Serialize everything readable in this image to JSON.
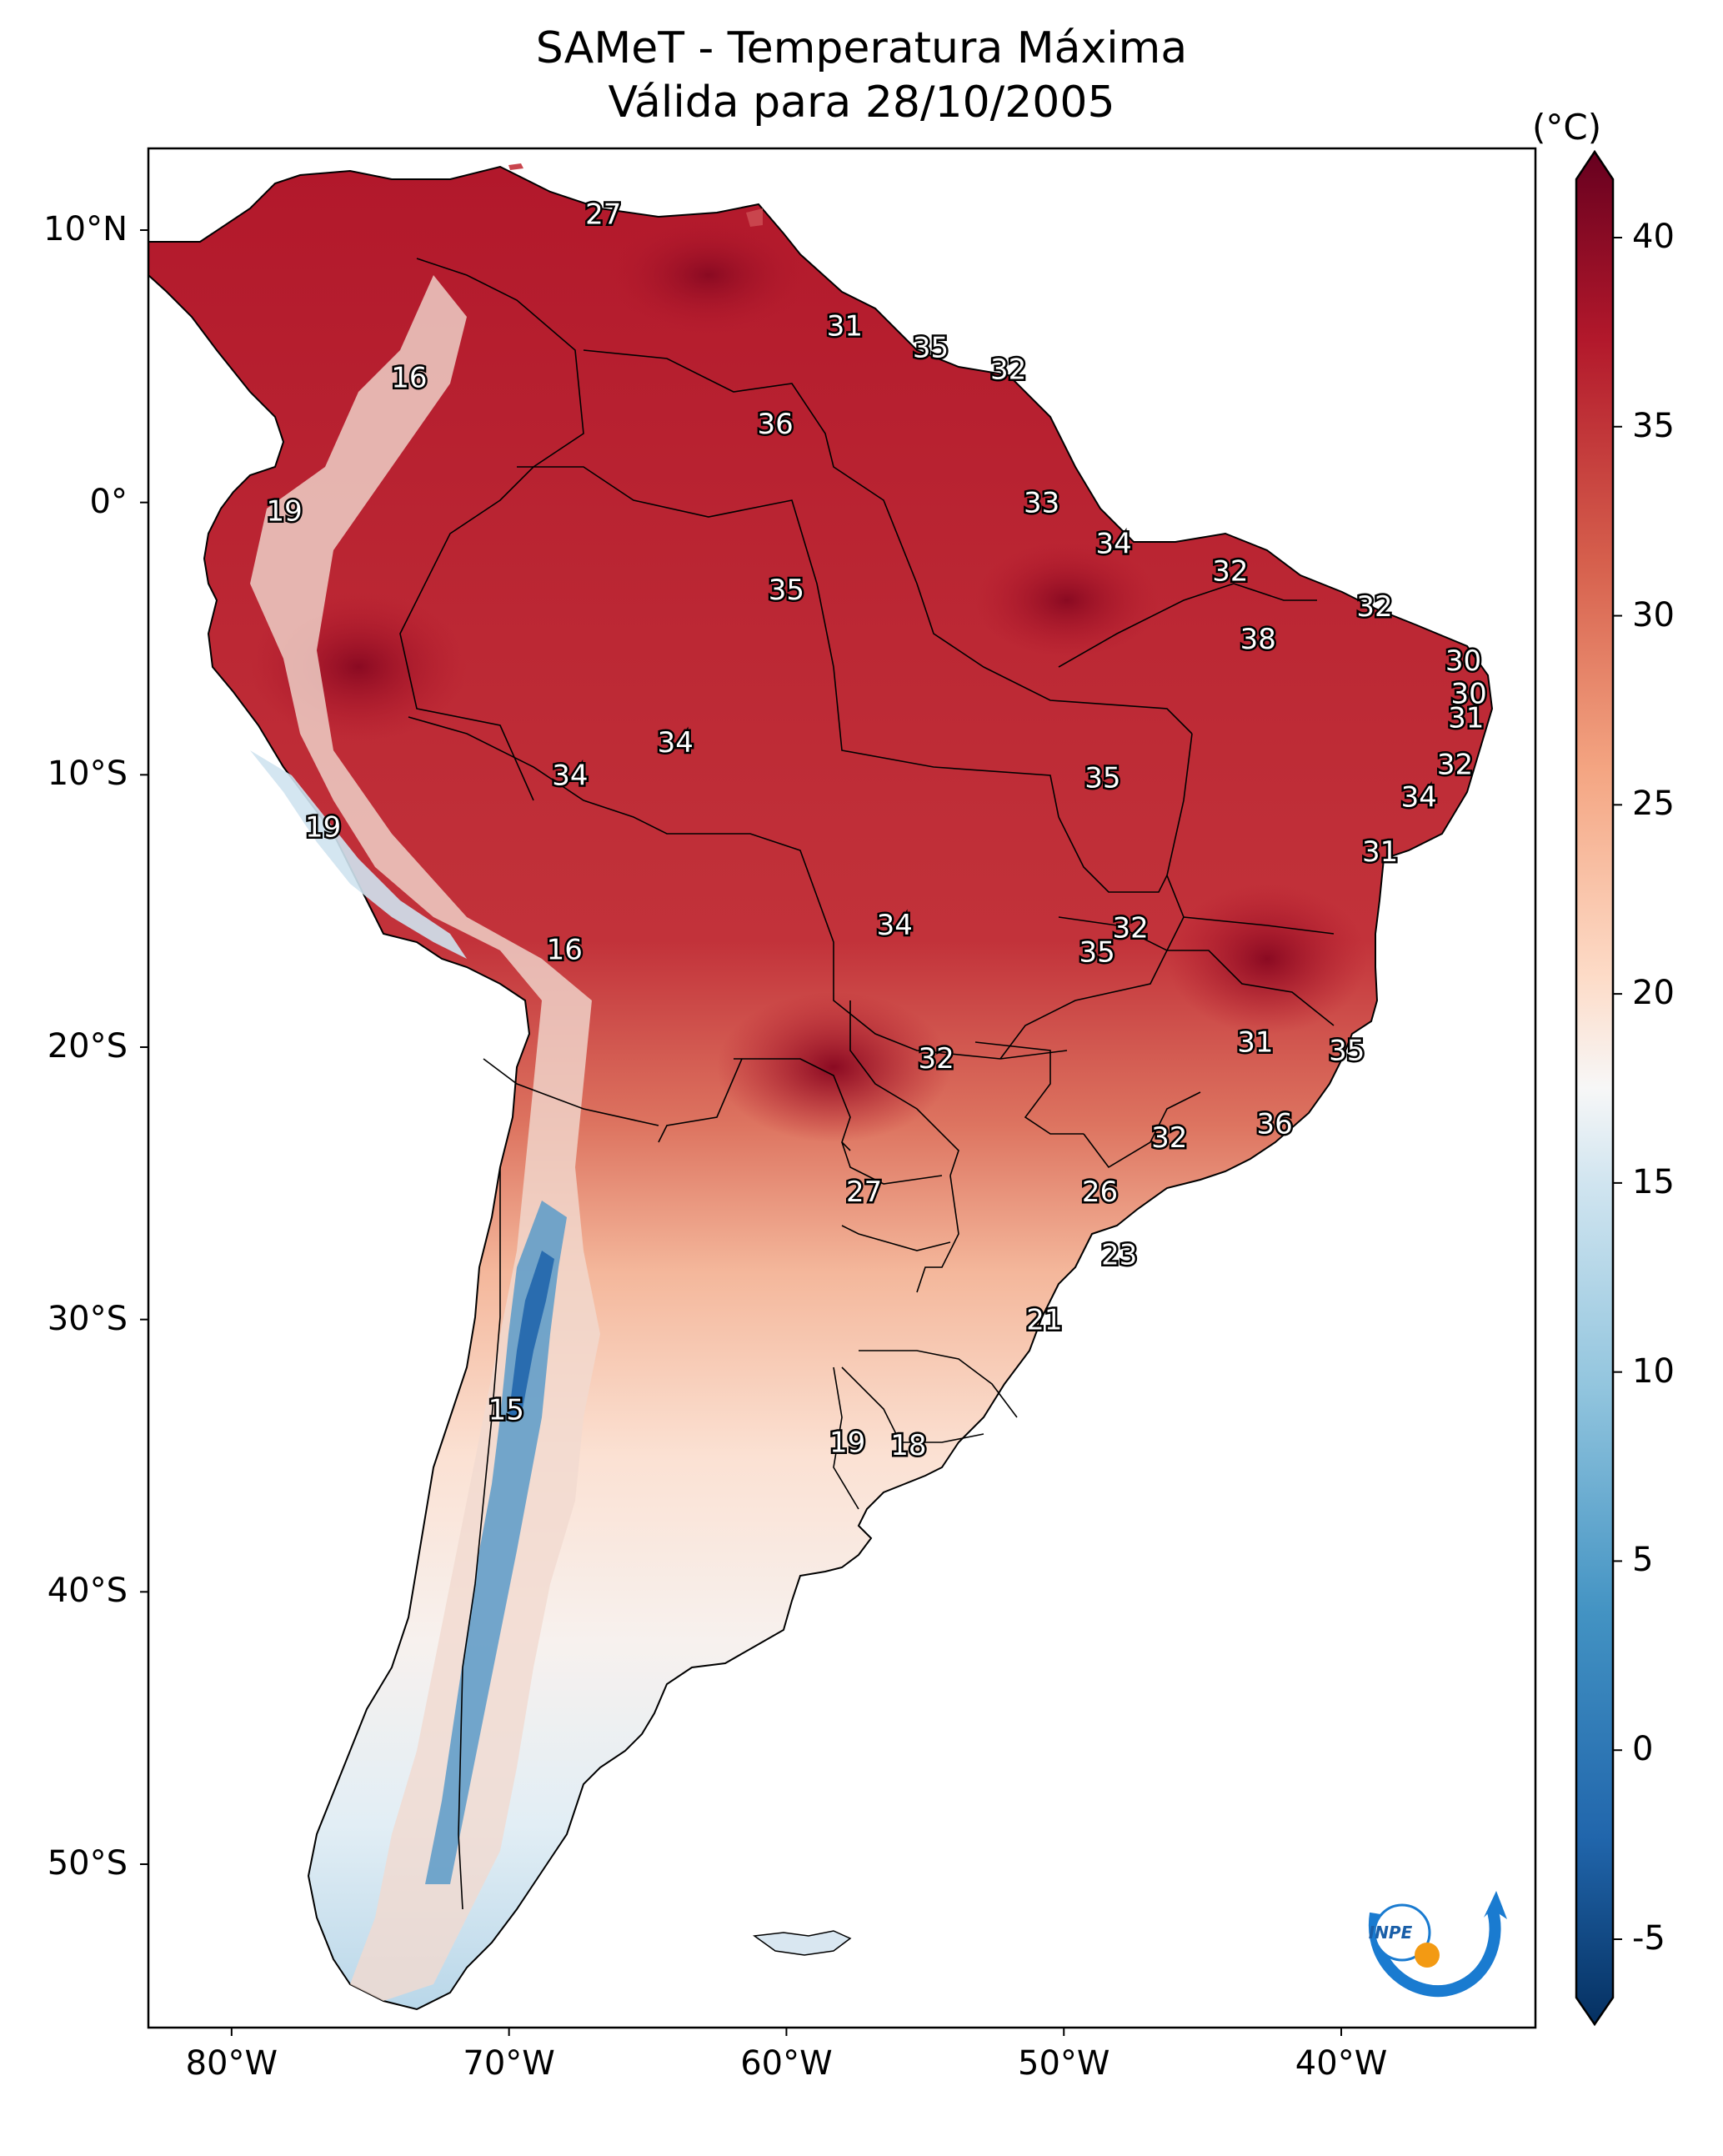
{
  "title": {
    "line1": "SAMeT - Temperatura Máxima",
    "line2": "Válida para 28/10/2005"
  },
  "colorbar": {
    "unit": "(°C)",
    "ticks": [
      40,
      35,
      30,
      25,
      20,
      15,
      10,
      5,
      0,
      -5
    ],
    "tick_labels": [
      "40",
      "35",
      "30",
      "25",
      "20",
      "15",
      "10",
      "5",
      "0",
      "-5"
    ],
    "range": [
      -5,
      40
    ],
    "colormap": "RdBu_r"
  },
  "axes": {
    "lat_labels": [
      "10°N",
      "0°",
      "10°S",
      "20°S",
      "30°S",
      "40°S",
      "50°S"
    ],
    "lat_values": [
      10,
      0,
      -10,
      -20,
      -30,
      -40,
      -50
    ],
    "lon_labels": [
      "80°W",
      "70°W",
      "60°W",
      "50°W",
      "40°W"
    ],
    "lon_values": [
      -80,
      -70,
      -60,
      -50,
      -40
    ],
    "lon_range": [
      -83,
      -33
    ],
    "lat_range": [
      -56,
      13
    ]
  },
  "contour_labels": [
    {
      "text": "27",
      "lon": -66.6,
      "lat": 10.6
    },
    {
      "text": "16",
      "lon": -73.6,
      "lat": 4.6
    },
    {
      "text": "31",
      "lon": -57.9,
      "lat": 6.5
    },
    {
      "text": "35",
      "lon": -54.8,
      "lat": 5.7
    },
    {
      "text": "32",
      "lon": -52.0,
      "lat": 4.9
    },
    {
      "text": "36",
      "lon": -60.4,
      "lat": 2.9
    },
    {
      "text": "19",
      "lon": -78.1,
      "lat": -0.3
    },
    {
      "text": "33",
      "lon": -50.8,
      "lat": 0.0
    },
    {
      "text": "34",
      "lon": -48.2,
      "lat": -1.5
    },
    {
      "text": "32",
      "lon": -44.0,
      "lat": -2.5
    },
    {
      "text": "35",
      "lon": -60.0,
      "lat": -3.2
    },
    {
      "text": "32",
      "lon": -38.8,
      "lat": -3.8
    },
    {
      "text": "38",
      "lon": -43.0,
      "lat": -5.0
    },
    {
      "text": "30",
      "lon": -35.6,
      "lat": -5.8
    },
    {
      "text": "30",
      "lon": -35.4,
      "lat": -7.0
    },
    {
      "text": "31",
      "lon": -35.5,
      "lat": -7.9
    },
    {
      "text": "34",
      "lon": -64.0,
      "lat": -8.8
    },
    {
      "text": "34",
      "lon": -67.8,
      "lat": -10.0
    },
    {
      "text": "35",
      "lon": -48.6,
      "lat": -10.1
    },
    {
      "text": "32",
      "lon": -35.9,
      "lat": -9.6
    },
    {
      "text": "34",
      "lon": -37.2,
      "lat": -10.8
    },
    {
      "text": "19",
      "lon": -76.7,
      "lat": -11.9
    },
    {
      "text": "31",
      "lon": -38.6,
      "lat": -12.8
    },
    {
      "text": "34",
      "lon": -56.1,
      "lat": -15.5
    },
    {
      "text": "32",
      "lon": -47.6,
      "lat": -15.6
    },
    {
      "text": "35",
      "lon": -48.8,
      "lat": -16.5
    },
    {
      "text": "16",
      "lon": -68.0,
      "lat": -16.4
    },
    {
      "text": "31",
      "lon": -43.1,
      "lat": -19.8
    },
    {
      "text": "32",
      "lon": -54.6,
      "lat": -20.4
    },
    {
      "text": "35",
      "lon": -39.8,
      "lat": -20.1
    },
    {
      "text": "36",
      "lon": -42.4,
      "lat": -22.8
    },
    {
      "text": "32",
      "lon": -46.2,
      "lat": -23.3
    },
    {
      "text": "27",
      "lon": -57.2,
      "lat": -25.3
    },
    {
      "text": "26",
      "lon": -48.7,
      "lat": -25.3
    },
    {
      "text": "23",
      "lon": -48.0,
      "lat": -27.6
    },
    {
      "text": "21",
      "lon": -50.7,
      "lat": -30.0
    },
    {
      "text": "15",
      "lon": -70.1,
      "lat": -33.3
    },
    {
      "text": "19",
      "lon": -57.8,
      "lat": -34.5
    },
    {
      "text": "18",
      "lon": -55.6,
      "lat": -34.6
    }
  ],
  "logo": {
    "text": "INPE"
  }
}
